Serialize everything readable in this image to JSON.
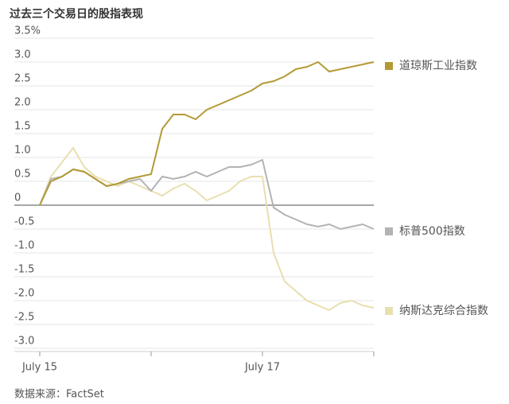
{
  "chart_data": {
    "type": "line",
    "title": "过去三个交易日的股指表现",
    "source": "数据来源：FactSet",
    "x": [
      0,
      0.1,
      0.2,
      0.3,
      0.4,
      0.5,
      0.6,
      0.7,
      0.8,
      0.9,
      1,
      1.1,
      1.2,
      1.3,
      1.4,
      1.5,
      1.6,
      1.7,
      1.8,
      1.9,
      2,
      2.1,
      2.2,
      2.3,
      2.4,
      2.5,
      2.6,
      2.7,
      2.8,
      2.9,
      3
    ],
    "xlim": [
      0,
      3
    ],
    "xticks": [
      {
        "value": 0,
        "label": "July 15"
      },
      {
        "value": 2,
        "label": "July 17"
      }
    ],
    "x_tick_marks": [
      0,
      1,
      2,
      3
    ],
    "ylim": [
      -3,
      3.5
    ],
    "yticks": [
      {
        "value": 3.5,
        "label": "3.5%"
      },
      {
        "value": 3,
        "label": "3.0"
      },
      2.5,
      {
        "value": 2,
        "label": "2.0"
      },
      1.5,
      {
        "value": 1,
        "label": "1.0"
      },
      0.5,
      0,
      -0.5,
      {
        "value": -1,
        "label": "-1.0"
      },
      -1.5,
      {
        "value": -2,
        "label": "-2.0"
      },
      -2.5,
      {
        "value": -3,
        "label": "-3.0"
      }
    ],
    "grid": true,
    "series": [
      {
        "name": "道琼斯工业指数",
        "color": "#b49a35",
        "values": [
          0,
          0.5,
          0.6,
          0.75,
          0.7,
          0.55,
          0.4,
          0.45,
          0.55,
          0.6,
          0.65,
          1.6,
          1.9,
          1.9,
          1.8,
          2.0,
          2.1,
          2.2,
          2.3,
          2.4,
          2.55,
          2.6,
          2.7,
          2.85,
          2.9,
          3.0,
          2.8,
          2.85,
          2.9,
          2.95,
          3.0
        ]
      },
      {
        "name": "标普500指数",
        "color": "#b3b3b3",
        "values": [
          0,
          0.55,
          0.6,
          0.75,
          0.7,
          0.55,
          0.4,
          0.45,
          0.5,
          0.55,
          0.3,
          0.6,
          0.55,
          0.6,
          0.7,
          0.6,
          0.7,
          0.8,
          0.8,
          0.85,
          0.95,
          -0.05,
          -0.2,
          -0.3,
          -0.4,
          -0.45,
          -0.4,
          -0.5,
          -0.45,
          -0.4,
          -0.5
        ]
      },
      {
        "name": "纳斯达克综合指数",
        "color": "#e8dfb0",
        "values": [
          0,
          0.6,
          0.9,
          1.2,
          0.8,
          0.6,
          0.5,
          0.4,
          0.5,
          0.4,
          0.3,
          0.2,
          0.35,
          0.45,
          0.3,
          0.1,
          0.2,
          0.3,
          0.5,
          0.6,
          0.6,
          -1.0,
          -1.6,
          -1.8,
          -2.0,
          -2.1,
          -2.2,
          -2.05,
          -2.0,
          -2.1,
          -2.15
        ]
      }
    ]
  }
}
